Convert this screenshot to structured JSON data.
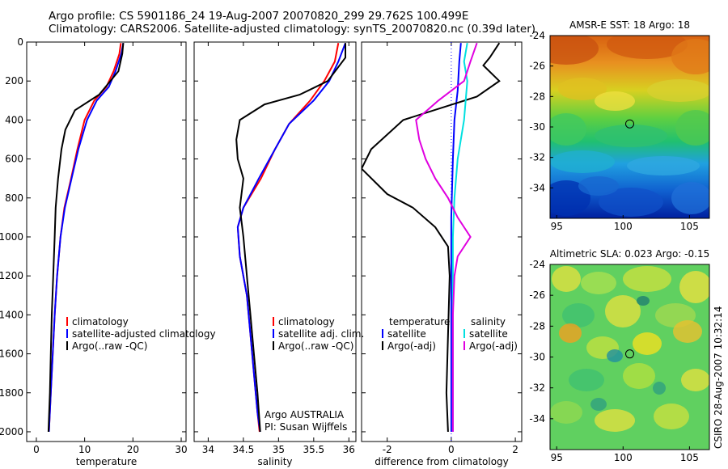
{
  "header": {
    "line1": "Argo profile: CS 5901186_24 19-Aug-2007 20070820_299 29.762S 100.499E",
    "line2": "Climatology: CARS2006. Satellite-adjusted climatology: synTS_20070820.nc (0.39d later)"
  },
  "side_label": "CSIRO 28-Aug-2007 10:32:14",
  "chart_data": [
    {
      "type": "line",
      "xlabel": "temperature",
      "ylim": [
        0,
        2050
      ],
      "xlim": [
        -2,
        31
      ],
      "yticks": [
        0,
        200,
        400,
        600,
        800,
        1000,
        1200,
        1400,
        1600,
        1800,
        2000
      ],
      "xticks": [
        0,
        10,
        20,
        30
      ],
      "legend": [
        "climatology",
        "satellite-adjusted climatology",
        "Argo(..raw -QC)"
      ],
      "series": [
        {
          "name": "climatology",
          "color": "#ff0000",
          "points": [
            [
              17.5,
              5
            ],
            [
              17.2,
              60
            ],
            [
              16,
              150
            ],
            [
              14.5,
              230
            ],
            [
              12,
              300
            ],
            [
              10,
              400
            ],
            [
              8.5,
              550
            ],
            [
              7.2,
              700
            ],
            [
              5.8,
              850
            ],
            [
              5,
              1000
            ],
            [
              4.3,
              1200
            ],
            [
              3.8,
              1400
            ],
            [
              3.4,
              1600
            ],
            [
              3.0,
              1800
            ],
            [
              2.6,
              2000
            ]
          ]
        },
        {
          "name": "satellite-adjusted climatology",
          "color": "#0000ff",
          "points": [
            [
              18,
              5
            ],
            [
              17.6,
              60
            ],
            [
              16.4,
              150
            ],
            [
              15,
              230
            ],
            [
              12.5,
              300
            ],
            [
              10.5,
              400
            ],
            [
              8.7,
              550
            ],
            [
              7.3,
              700
            ],
            [
              5.9,
              850
            ],
            [
              5,
              1000
            ],
            [
              4.3,
              1200
            ],
            [
              3.8,
              1400
            ],
            [
              3.4,
              1600
            ],
            [
              3.0,
              1800
            ],
            [
              2.6,
              2000
            ]
          ]
        },
        {
          "name": "Argo(..raw -QC)",
          "color": "#000000",
          "points": [
            [
              18,
              5
            ],
            [
              17.8,
              60
            ],
            [
              17,
              150
            ],
            [
              13,
              270
            ],
            [
              8,
              350
            ],
            [
              6,
              450
            ],
            [
              5.2,
              550
            ],
            [
              4.5,
              700
            ],
            [
              4,
              850
            ],
            [
              3.8,
              1000
            ],
            [
              3.5,
              1200
            ],
            [
              3.2,
              1400
            ],
            [
              3,
              1600
            ],
            [
              2.8,
              1800
            ],
            [
              2.5,
              2000
            ]
          ]
        }
      ]
    },
    {
      "type": "line",
      "xlabel": "salinity",
      "xlim": [
        33.8,
        36.1
      ],
      "xticks": [
        34,
        34.5,
        35,
        35.5,
        36
      ],
      "legend": [
        "climatology",
        "satellite adj. clim.",
        "Argo(..raw -QC)"
      ],
      "annotation": [
        "Argo AUSTRALIA",
        "PI: Susan Wijffels"
      ],
      "series": [
        {
          "name": "climatology",
          "color": "#ff0000",
          "points": [
            [
              35.85,
              5
            ],
            [
              35.8,
              100
            ],
            [
              35.65,
              200
            ],
            [
              35.45,
              300
            ],
            [
              35.15,
              420
            ],
            [
              34.95,
              550
            ],
            [
              34.75,
              700
            ],
            [
              34.5,
              850
            ],
            [
              34.42,
              950
            ],
            [
              34.45,
              1100
            ],
            [
              34.55,
              1300
            ],
            [
              34.6,
              1500
            ],
            [
              34.65,
              1700
            ],
            [
              34.7,
              1900
            ],
            [
              34.73,
              2000
            ]
          ]
        },
        {
          "name": "satellite adj. clim.",
          "color": "#0000ff",
          "points": [
            [
              35.95,
              5
            ],
            [
              35.85,
              100
            ],
            [
              35.72,
              200
            ],
            [
              35.5,
              300
            ],
            [
              35.15,
              420
            ],
            [
              34.95,
              550
            ],
            [
              34.72,
              700
            ],
            [
              34.5,
              850
            ],
            [
              34.42,
              950
            ],
            [
              34.45,
              1100
            ],
            [
              34.55,
              1300
            ],
            [
              34.6,
              1500
            ],
            [
              34.65,
              1700
            ],
            [
              34.7,
              1900
            ],
            [
              34.74,
              2000
            ]
          ]
        },
        {
          "name": "Argo(..raw -QC)",
          "color": "#000000",
          "points": [
            [
              35.95,
              5
            ],
            [
              35.95,
              80
            ],
            [
              35.7,
              200
            ],
            [
              35.3,
              270
            ],
            [
              34.8,
              320
            ],
            [
              34.45,
              400
            ],
            [
              34.4,
              500
            ],
            [
              34.42,
              600
            ],
            [
              34.5,
              700
            ],
            [
              34.45,
              850
            ],
            [
              34.5,
              1000
            ],
            [
              34.55,
              1200
            ],
            [
              34.6,
              1400
            ],
            [
              34.65,
              1600
            ],
            [
              34.7,
              1800
            ],
            [
              34.74,
              2000
            ]
          ]
        }
      ]
    },
    {
      "type": "line",
      "xlabel": "difference from climatology",
      "xlim": [
        -2.8,
        2.2
      ],
      "xticks": [
        -2,
        0,
        2
      ],
      "legend_left_title": "temperature",
      "legend_right_title": "salinity",
      "legend": [
        "satellite",
        "Argo(-adj)",
        "satellite",
        "Argo(-adj)"
      ],
      "series": [
        {
          "name": "satellite",
          "color": "#0000ff",
          "points": [
            [
              0.3,
              5
            ],
            [
              0.25,
              100
            ],
            [
              0.2,
              250
            ],
            [
              0.1,
              400
            ],
            [
              0.05,
              600
            ],
            [
              0,
              900
            ],
            [
              0,
              1200
            ],
            [
              0,
              1600
            ],
            [
              0,
              2000
            ]
          ]
        },
        {
          "name": "Argo(-adj)",
          "color": "#000000",
          "points": [
            [
              1.5,
              5
            ],
            [
              1.2,
              80
            ],
            [
              1.0,
              120
            ],
            [
              1.5,
              200
            ],
            [
              0.8,
              280
            ],
            [
              -1.5,
              400
            ],
            [
              -2.5,
              550
            ],
            [
              -2.8,
              650
            ],
            [
              -2.0,
              780
            ],
            [
              -1.2,
              850
            ],
            [
              -0.5,
              950
            ],
            [
              -0.1,
              1050
            ],
            [
              -0.05,
              1200
            ],
            [
              -0.1,
              1500
            ],
            [
              -0.15,
              1800
            ],
            [
              -0.1,
              2000
            ]
          ]
        },
        {
          "name": "satellite",
          "color": "#00e0e0",
          "points": [
            [
              0.5,
              5
            ],
            [
              0.4,
              100
            ],
            [
              0.5,
              200
            ],
            [
              0.4,
              400
            ],
            [
              0.2,
              600
            ],
            [
              0.1,
              800
            ],
            [
              0.05,
              1000
            ],
            [
              0.05,
              1400
            ],
            [
              0.05,
              2000
            ]
          ]
        },
        {
          "name": "Argo(-adj)",
          "color": "#e000e0",
          "points": [
            [
              0.8,
              5
            ],
            [
              0.6,
              100
            ],
            [
              0.4,
              200
            ],
            [
              -0.4,
              300
            ],
            [
              -1.1,
              400
            ],
            [
              -1.0,
              500
            ],
            [
              -0.8,
              600
            ],
            [
              -0.5,
              700
            ],
            [
              -0.1,
              800
            ],
            [
              0.2,
              900
            ],
            [
              0.6,
              1000
            ],
            [
              0.2,
              1100
            ],
            [
              0.1,
              1200
            ],
            [
              0.05,
              1400
            ],
            [
              0.05,
              1700
            ],
            [
              0.05,
              2000
            ]
          ]
        }
      ]
    },
    {
      "type": "heatmap",
      "title": "AMSR-E SST: 18 Argo: 18",
      "xlim": [
        94.5,
        106.5
      ],
      "ylim": [
        -36,
        -24
      ],
      "xticks": [
        95,
        100,
        105
      ],
      "yticks": [
        -24,
        -26,
        -28,
        -30,
        -32,
        -34
      ],
      "marker": {
        "lon": 100.5,
        "lat": -29.8
      }
    },
    {
      "type": "heatmap",
      "title": "Altimetric SLA: 0.023 Argo: -0.15",
      "xlim": [
        94.5,
        106.5
      ],
      "ylim": [
        -36,
        -24
      ],
      "xticks": [
        95,
        100,
        105
      ],
      "yticks": [
        -24,
        -26,
        -28,
        -30,
        -32,
        -34
      ],
      "marker": {
        "lon": 100.5,
        "lat": -29.8
      }
    }
  ]
}
